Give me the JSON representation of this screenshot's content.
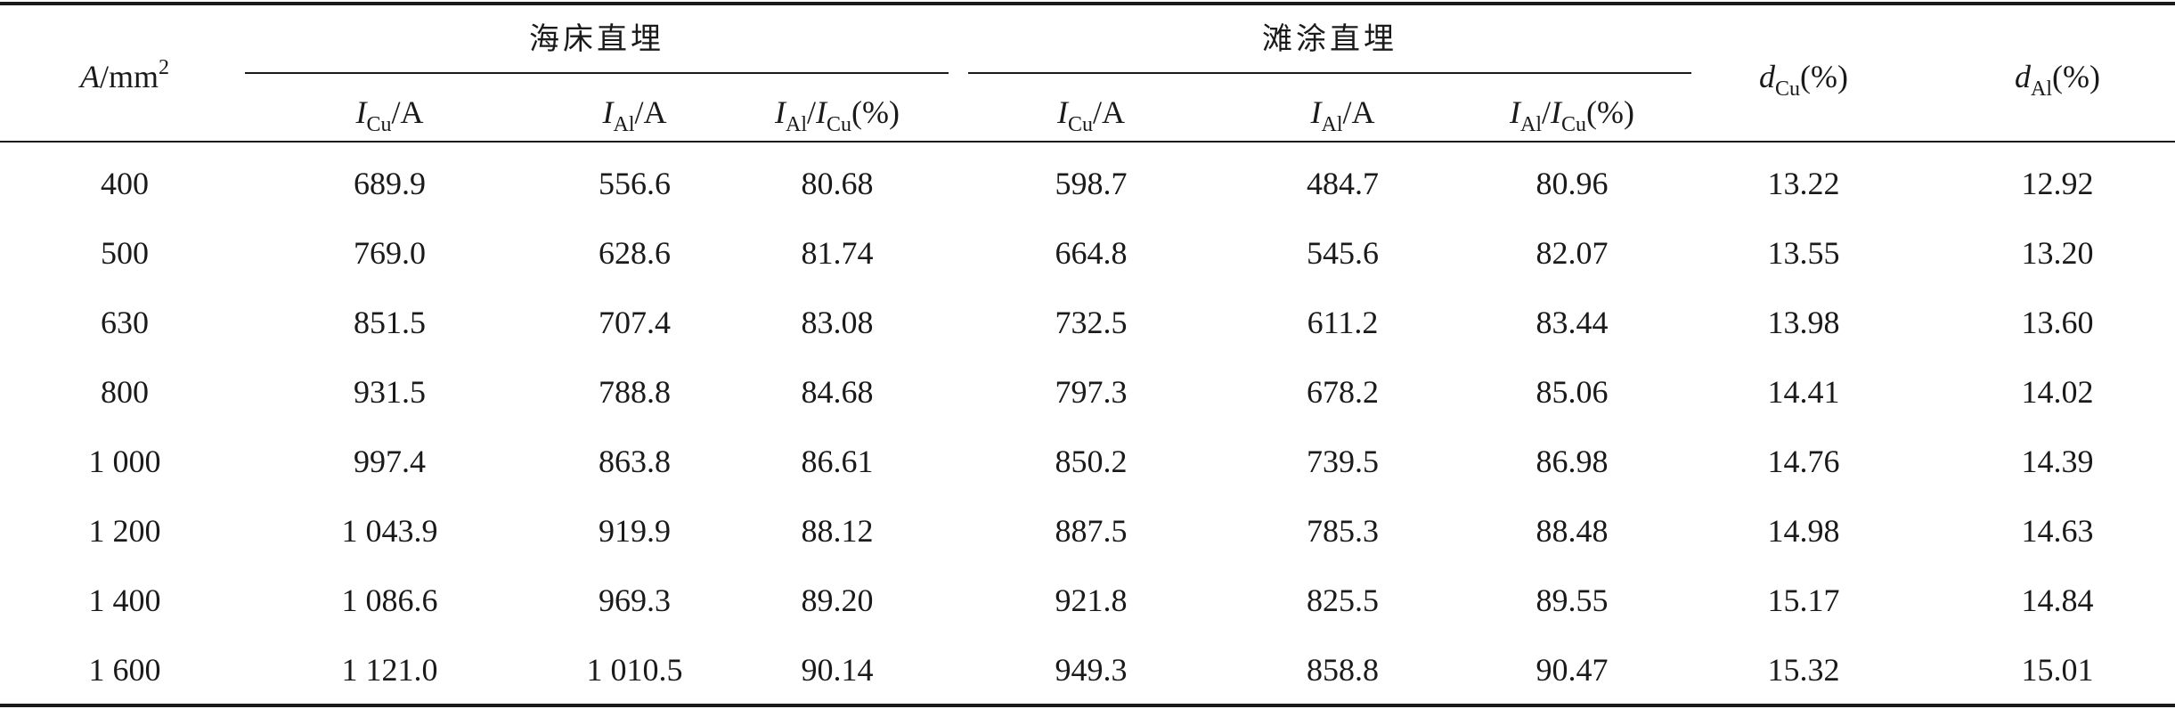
{
  "header": {
    "area": {
      "var": "A",
      "unit": "/mm",
      "sup": "2"
    },
    "group_seabed": "海床直埋",
    "group_beach": "滩涂直埋",
    "i_cu": {
      "var": "I",
      "sub": "Cu",
      "unit": "/A"
    },
    "i_al": {
      "var": "I",
      "sub": "Al",
      "unit": "/A"
    },
    "ratio": {
      "var1": "I",
      "sub1": "Al",
      "slash": "/",
      "var2": "I",
      "sub2": "Cu",
      "unit": "(%)"
    },
    "d_cu": {
      "var": "d",
      "sub": "Cu",
      "unit": "(%)"
    },
    "d_al": {
      "var": "d",
      "sub": "Al",
      "unit": "(%)"
    }
  },
  "rows": [
    [
      "400",
      "689.9",
      "556.6",
      "80.68",
      "598.7",
      "484.7",
      "80.96",
      "13.22",
      "12.92"
    ],
    [
      "500",
      "769.0",
      "628.6",
      "81.74",
      "664.8",
      "545.6",
      "82.07",
      "13.55",
      "13.20"
    ],
    [
      "630",
      "851.5",
      "707.4",
      "83.08",
      "732.5",
      "611.2",
      "83.44",
      "13.98",
      "13.60"
    ],
    [
      "800",
      "931.5",
      "788.8",
      "84.68",
      "797.3",
      "678.2",
      "85.06",
      "14.41",
      "14.02"
    ],
    [
      "1 000",
      "997.4",
      "863.8",
      "86.61",
      "850.2",
      "739.5",
      "86.98",
      "14.76",
      "14.39"
    ],
    [
      "1 200",
      "1 043.9",
      "919.9",
      "88.12",
      "887.5",
      "785.3",
      "88.48",
      "14.98",
      "14.63"
    ],
    [
      "1 400",
      "1 086.6",
      "969.3",
      "89.20",
      "921.8",
      "825.5",
      "89.55",
      "15.17",
      "14.84"
    ],
    [
      "1 600",
      "1 121.0",
      "1 010.5",
      "90.14",
      "949.3",
      "858.8",
      "90.47",
      "15.32",
      "15.01"
    ]
  ]
}
